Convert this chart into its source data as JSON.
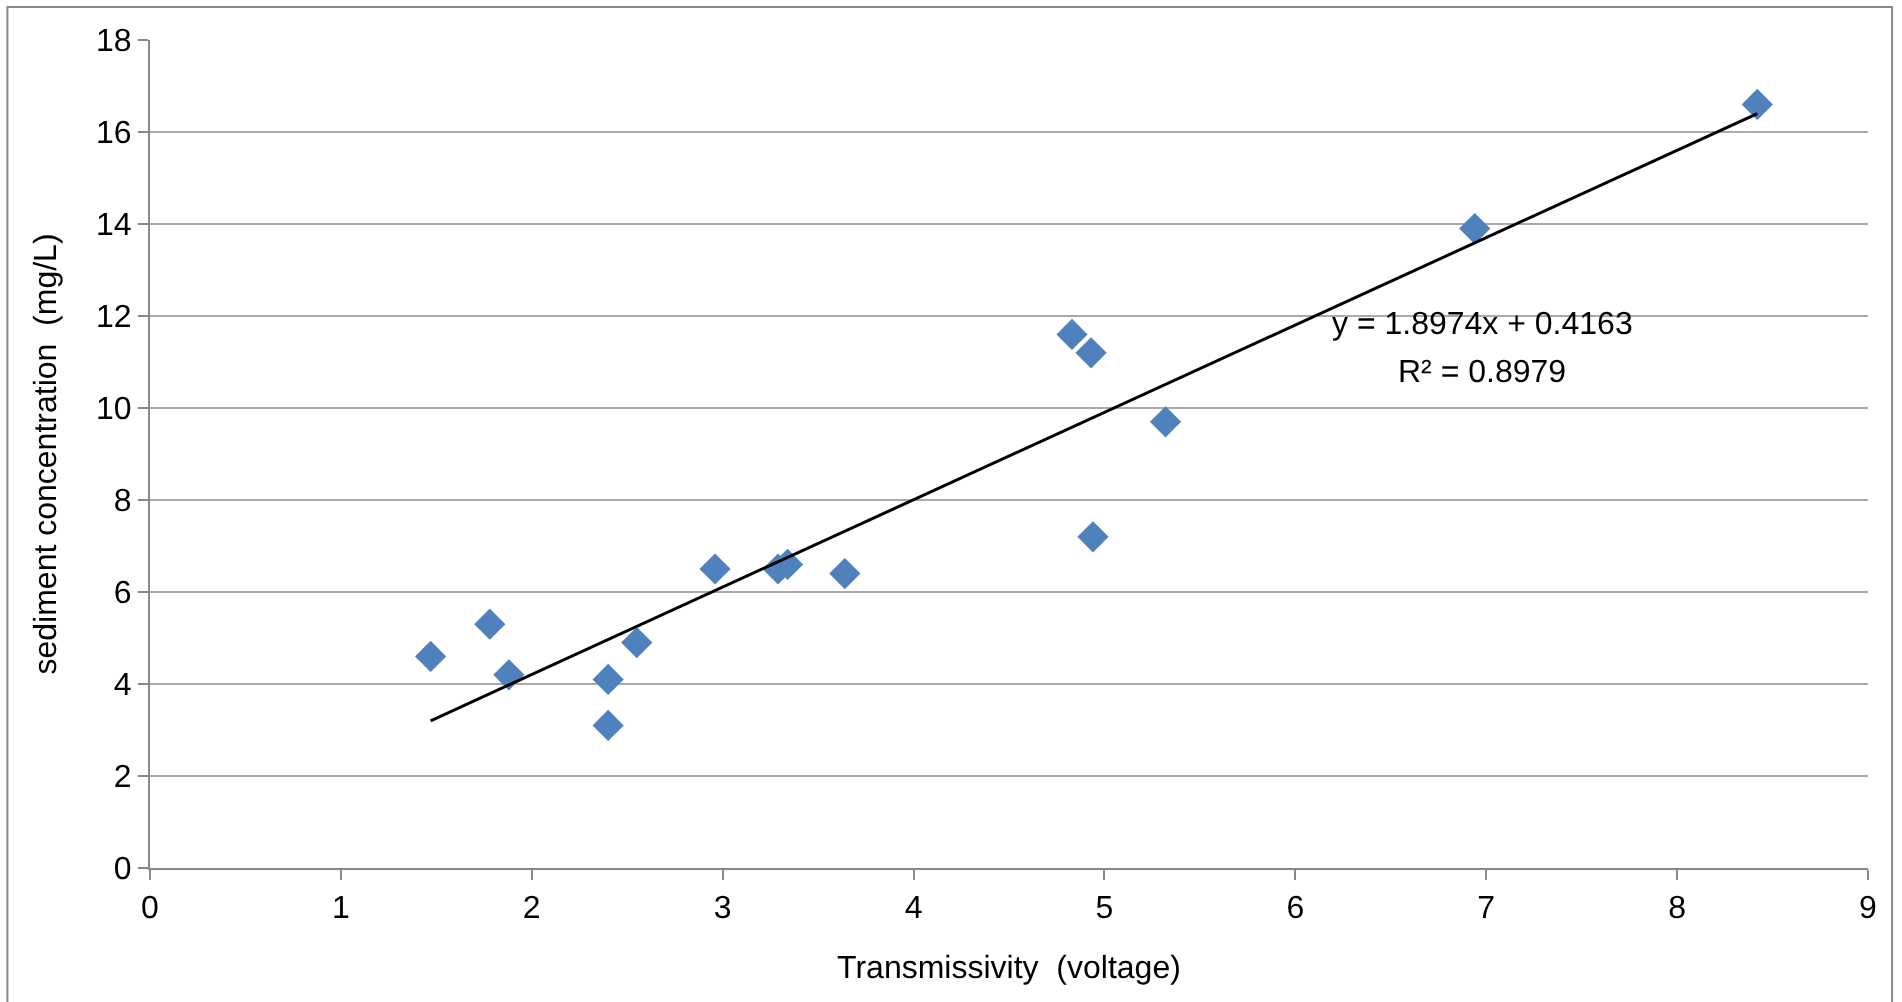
{
  "chart_data": {
    "type": "scatter",
    "xlabel": "Transmissivity  (voltage)",
    "ylabel": "sediment concentration  (mg/L)",
    "xlim": [
      0,
      9
    ],
    "xticks": [
      0,
      1,
      2,
      3,
      4,
      5,
      6,
      7,
      8,
      9
    ],
    "ylim": [
      0,
      18
    ],
    "yticks": [
      0,
      2,
      4,
      6,
      8,
      10,
      12,
      14,
      16,
      18
    ],
    "grid": "y",
    "series": [
      {
        "marker": "diamond",
        "color": "#4f81bd",
        "x": [
          1.47,
          1.78,
          1.88,
          2.4,
          2.4,
          2.55,
          2.96,
          3.29,
          3.34,
          3.64,
          4.83,
          4.93,
          4.94,
          5.32,
          6.94,
          8.42
        ],
        "values": [
          4.6,
          5.3,
          4.2,
          4.1,
          3.1,
          4.9,
          6.5,
          6.5,
          6.6,
          6.4,
          11.6,
          11.2,
          7.2,
          9.7,
          13.9,
          16.6
        ]
      },
      {
        "type": "line",
        "color": "#000000",
        "x": [
          1.47,
          8.42
        ],
        "values": [
          3.2,
          16.4
        ]
      }
    ],
    "annotations": [
      "y = 1.8974x + 0.4163",
      "R² = 0.8979"
    ]
  }
}
